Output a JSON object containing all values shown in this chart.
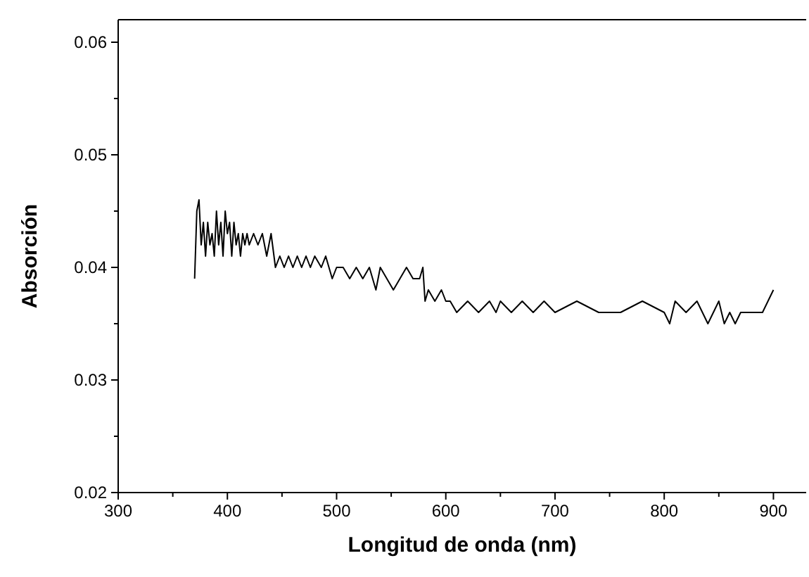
{
  "chart_data": {
    "type": "line",
    "xlabel": "Longitud de onda (nm)",
    "ylabel": "Absorción",
    "xlim": [
      300,
      930
    ],
    "ylim": [
      0.02,
      0.062
    ],
    "xticks": [
      300,
      {
        "value": 350,
        "label": null
      },
      400,
      {
        "value": 450,
        "label": null
      },
      500,
      {
        "value": 550,
        "label": null
      },
      600,
      {
        "value": 650,
        "label": null
      },
      700,
      {
        "value": 750,
        "label": null
      },
      800,
      {
        "value": 850,
        "label": null
      },
      900
    ],
    "yticks": [
      0.02,
      {
        "value": 0.025,
        "label": null
      },
      0.03,
      {
        "value": 0.035,
        "label": null
      },
      0.04,
      {
        "value": 0.045,
        "label": null
      },
      0.05,
      {
        "value": 0.055,
        "label": null
      },
      0.06
    ],
    "grid": false,
    "marker": "none",
    "line_style": "solid",
    "series": [
      {
        "color": "#000000",
        "x": [
          370,
          372,
          374,
          376,
          378,
          380,
          382,
          384,
          386,
          388,
          390,
          392,
          394,
          396,
          398,
          400,
          402,
          404,
          406,
          408,
          410,
          412,
          414,
          416,
          418,
          420,
          424,
          428,
          432,
          436,
          440,
          444,
          448,
          452,
          456,
          460,
          464,
          468,
          472,
          476,
          480,
          486,
          490,
          496,
          500,
          506,
          512,
          518,
          524,
          530,
          536,
          540,
          546,
          552,
          558,
          564,
          570,
          576,
          579,
          581,
          584,
          590,
          596,
          600,
          604,
          610,
          620,
          630,
          640,
          646,
          650,
          660,
          670,
          680,
          690,
          700,
          720,
          740,
          760,
          780,
          800,
          805,
          810,
          820,
          830,
          840,
          850,
          855,
          860,
          865,
          870,
          880,
          890,
          895,
          900
        ],
        "values": [
          0.039,
          0.045,
          0.046,
          0.042,
          0.044,
          0.041,
          0.044,
          0.042,
          0.043,
          0.041,
          0.045,
          0.042,
          0.044,
          0.041,
          0.045,
          0.043,
          0.044,
          0.041,
          0.044,
          0.042,
          0.043,
          0.041,
          0.043,
          0.042,
          0.043,
          0.042,
          0.043,
          0.042,
          0.043,
          0.041,
          0.043,
          0.04,
          0.041,
          0.04,
          0.041,
          0.04,
          0.041,
          0.04,
          0.041,
          0.04,
          0.041,
          0.04,
          0.041,
          0.039,
          0.04,
          0.04,
          0.039,
          0.04,
          0.039,
          0.04,
          0.038,
          0.04,
          0.039,
          0.038,
          0.039,
          0.04,
          0.039,
          0.039,
          0.04,
          0.037,
          0.038,
          0.037,
          0.038,
          0.037,
          0.037,
          0.036,
          0.037,
          0.036,
          0.037,
          0.036,
          0.037,
          0.036,
          0.037,
          0.036,
          0.037,
          0.036,
          0.037,
          0.036,
          0.036,
          0.037,
          0.036,
          0.035,
          0.037,
          0.036,
          0.037,
          0.035,
          0.037,
          0.035,
          0.036,
          0.035,
          0.036,
          0.036,
          0.036,
          0.037,
          0.038
        ]
      }
    ]
  }
}
